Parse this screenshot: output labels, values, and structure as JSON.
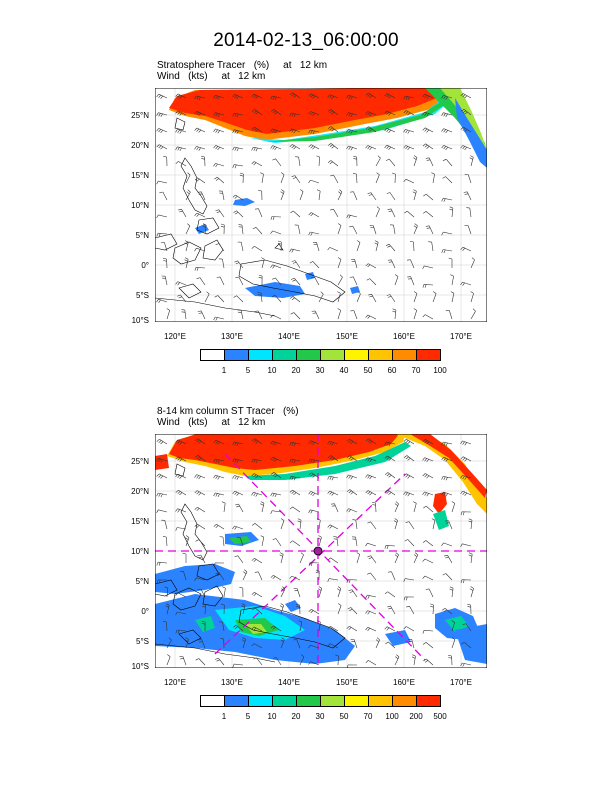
{
  "title": "2014-02-13_06:00:00",
  "panels": [
    {
      "subtitle_line1": "Stratosphere Tracer   (%)     at   12 km",
      "subtitle_line2": "Wind   (kts)     at   12 km",
      "lat_labels": [
        "25°N",
        "20°N",
        "15°N",
        "10°N",
        "5°N",
        "0°",
        "5°S",
        "10°S"
      ],
      "lon_labels": [
        "120°E",
        "130°E",
        "140°E",
        "150°E",
        "160°E",
        "170°E"
      ],
      "colorbar_labels": [
        "1",
        "5",
        "10",
        "20",
        "30",
        "40",
        "50",
        "60",
        "70",
        "100"
      ],
      "colorbar_colors": [
        "#ffffff",
        "#2b83ff",
        "#00e5ff",
        "#00d39a",
        "#22c84a",
        "#a3e43a",
        "#fff400",
        "#ffc300",
        "#ff8c00",
        "#ff2a00"
      ]
    },
    {
      "subtitle_line1": "8-14 km column ST Tracer   (%)",
      "subtitle_line2": "Wind   (kts)     at   12 km",
      "lat_labels": [
        "25°N",
        "20°N",
        "15°N",
        "10°N",
        "5°N",
        "0°",
        "5°S",
        "10°S"
      ],
      "lon_labels": [
        "120°E",
        "130°E",
        "140°E",
        "150°E",
        "160°E",
        "170°E"
      ],
      "colorbar_labels": [
        "1",
        "5",
        "10",
        "20",
        "30",
        "50",
        "70",
        "100",
        "200",
        "500"
      ],
      "colorbar_colors": [
        "#ffffff",
        "#2b83ff",
        "#00e5ff",
        "#00d39a",
        "#22c84a",
        "#a3e43a",
        "#fff400",
        "#ffc300",
        "#ff8c00",
        "#ff2a00"
      ]
    }
  ],
  "colors": {
    "tracer_high": "#ff2a00",
    "marker_lines": "#e000e0",
    "coast": "#000000"
  }
}
